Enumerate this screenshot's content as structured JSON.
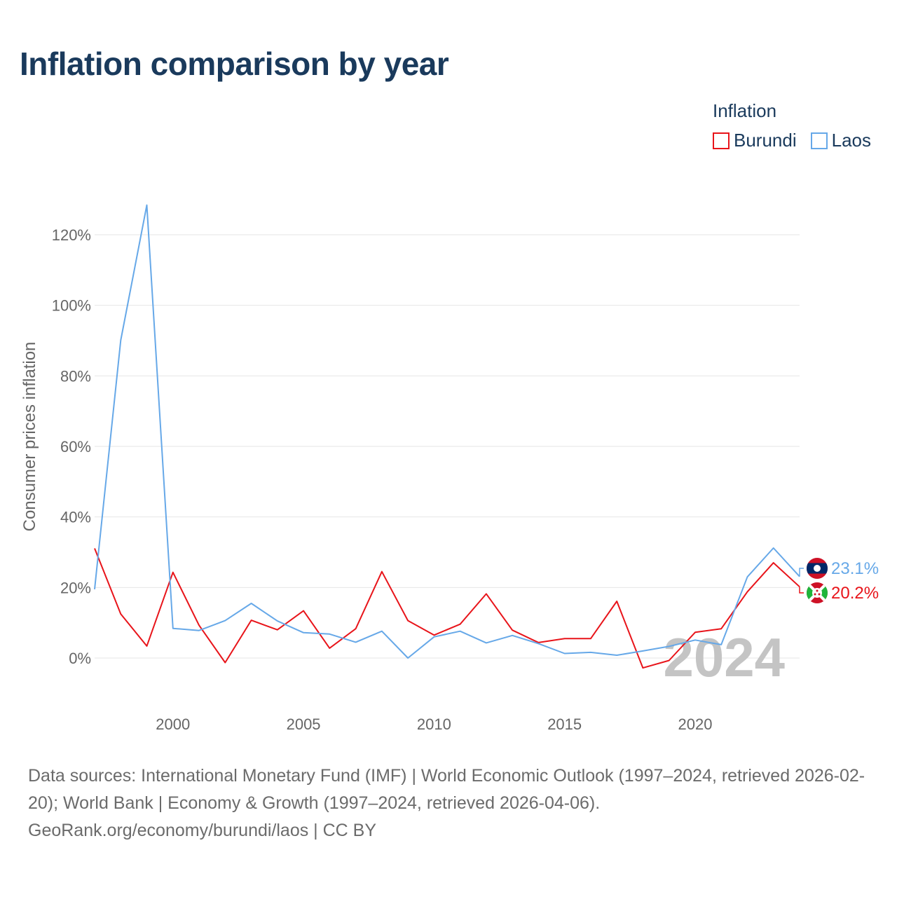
{
  "title": "Inflation comparison by year",
  "legend": {
    "title": "Inflation",
    "items": [
      {
        "name": "Burundi",
        "color": "#e8141a"
      },
      {
        "name": "Laos",
        "color": "#66a8e8"
      }
    ]
  },
  "chart_data": {
    "type": "line",
    "title": "Inflation comparison by year",
    "xlabel": "",
    "ylabel": "Consumer prices inflation",
    "x": [
      1997,
      1998,
      1999,
      2000,
      2001,
      2002,
      2003,
      2004,
      2005,
      2006,
      2007,
      2008,
      2009,
      2010,
      2011,
      2012,
      2013,
      2014,
      2015,
      2016,
      2017,
      2018,
      2019,
      2020,
      2021,
      2022,
      2023,
      2024
    ],
    "xlim": [
      1997,
      2024
    ],
    "ylim": [
      -12,
      128
    ],
    "x_ticks": [
      2000,
      2005,
      2010,
      2015,
      2020
    ],
    "y_ticks": [
      0,
      20,
      40,
      60,
      80,
      100,
      120
    ],
    "y_tick_labels": [
      "0%",
      "20%",
      "40%",
      "60%",
      "80%",
      "100%",
      "120%"
    ],
    "grid": true,
    "series": [
      {
        "name": "Burundi",
        "color": "#e8141a",
        "values": [
          31.1,
          12.5,
          3.4,
          24.3,
          9.3,
          -1.3,
          10.7,
          8.0,
          13.4,
          2.8,
          8.3,
          24.5,
          10.6,
          6.5,
          9.6,
          18.2,
          7.9,
          4.4,
          5.5,
          5.5,
          16.1,
          -2.8,
          -0.7,
          7.3,
          8.3,
          18.8,
          27.0,
          20.2
        ],
        "end_label": "20.2%"
      },
      {
        "name": "Laos",
        "color": "#66a8e8",
        "values": [
          19.5,
          90.1,
          128.4,
          8.4,
          7.8,
          10.6,
          15.5,
          10.5,
          7.2,
          6.8,
          4.5,
          7.6,
          0.0,
          6.0,
          7.6,
          4.3,
          6.4,
          4.1,
          1.3,
          1.6,
          0.8,
          2.0,
          3.3,
          5.1,
          3.8,
          23.0,
          31.2,
          23.1
        ],
        "end_label": "23.1%"
      }
    ],
    "watermark_year": "2024"
  },
  "footer": {
    "sources": "Data sources: International Monetary Fund (IMF) | World Economic Outlook (1997–2024, retrieved 2026-02-20); World Bank | Economy & Growth (1997–2024, retrieved 2026-04-06).",
    "credit": "GeoRank.org/economy/burundi/laos | CC BY"
  },
  "flags": {
    "laos": "laos-flag-icon",
    "burundi": "burundi-flag-icon"
  }
}
